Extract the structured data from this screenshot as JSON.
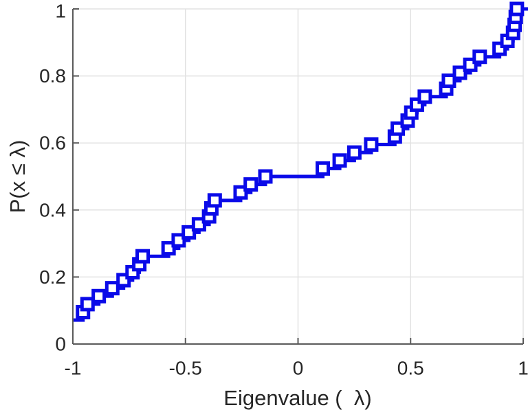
{
  "figure": {
    "background": "#ffffff"
  },
  "chart_data": {
    "type": "line",
    "subtype": "ecdf-stairs",
    "title": "",
    "xlabel": "Eigenvalue (  λ)",
    "ylabel": "P(x ≤ λ)",
    "xlim": [
      -1,
      1
    ],
    "ylim": [
      0,
      1
    ],
    "xticks": [
      -1,
      -0.5,
      0,
      0.5,
      1
    ],
    "xtick_labels": [
      "-1",
      "-0.5",
      "0",
      "0.5",
      "1"
    ],
    "yticks": [
      0,
      0.2,
      0.4,
      0.6,
      0.8,
      1
    ],
    "ytick_labels": [
      "0",
      "0.2",
      "0.4",
      "0.6",
      "0.8",
      "1"
    ],
    "grid": true,
    "n_samples": 42,
    "line_start": [
      -1,
      0.0714
    ],
    "points": [
      [
        -0.955,
        0.0952
      ],
      [
        -0.935,
        0.119
      ],
      [
        -0.885,
        0.1429
      ],
      [
        -0.825,
        0.1667
      ],
      [
        -0.775,
        0.1905
      ],
      [
        -0.735,
        0.2143
      ],
      [
        -0.705,
        0.2381
      ],
      [
        -0.69,
        0.2619
      ],
      [
        -0.575,
        0.2857
      ],
      [
        -0.53,
        0.3095
      ],
      [
        -0.485,
        0.3333
      ],
      [
        -0.44,
        0.3571
      ],
      [
        -0.395,
        0.381
      ],
      [
        -0.385,
        0.4048
      ],
      [
        -0.37,
        0.4286
      ],
      [
        -0.255,
        0.4524
      ],
      [
        -0.21,
        0.4762
      ],
      [
        -0.145,
        0.5
      ],
      [
        0.11,
        0.5238
      ],
      [
        0.185,
        0.5476
      ],
      [
        0.25,
        0.5714
      ],
      [
        0.325,
        0.5952
      ],
      [
        0.43,
        0.619
      ],
      [
        0.443,
        0.6429
      ],
      [
        0.487,
        0.6667
      ],
      [
        0.503,
        0.6905
      ],
      [
        0.528,
        0.7143
      ],
      [
        0.563,
        0.7381
      ],
      [
        0.658,
        0.7619
      ],
      [
        0.67,
        0.7857
      ],
      [
        0.719,
        0.8095
      ],
      [
        0.765,
        0.8333
      ],
      [
        0.807,
        0.8571
      ],
      [
        0.895,
        0.881
      ],
      [
        0.93,
        0.9048
      ],
      [
        0.955,
        0.9286
      ],
      [
        0.962,
        0.9524
      ],
      [
        0.967,
        0.9762
      ],
      [
        0.972,
        1.0
      ]
    ],
    "line_end_x": 1.0,
    "style": {
      "line_color": "#0a0ae8",
      "line_width": 5,
      "marker": "square-hollow",
      "marker_size": 16,
      "marker_face": "#ffffff",
      "grid_color": "#e2e2e2",
      "spine_color": "#5a5a5a",
      "text_color": "#262626"
    },
    "legend": null
  }
}
